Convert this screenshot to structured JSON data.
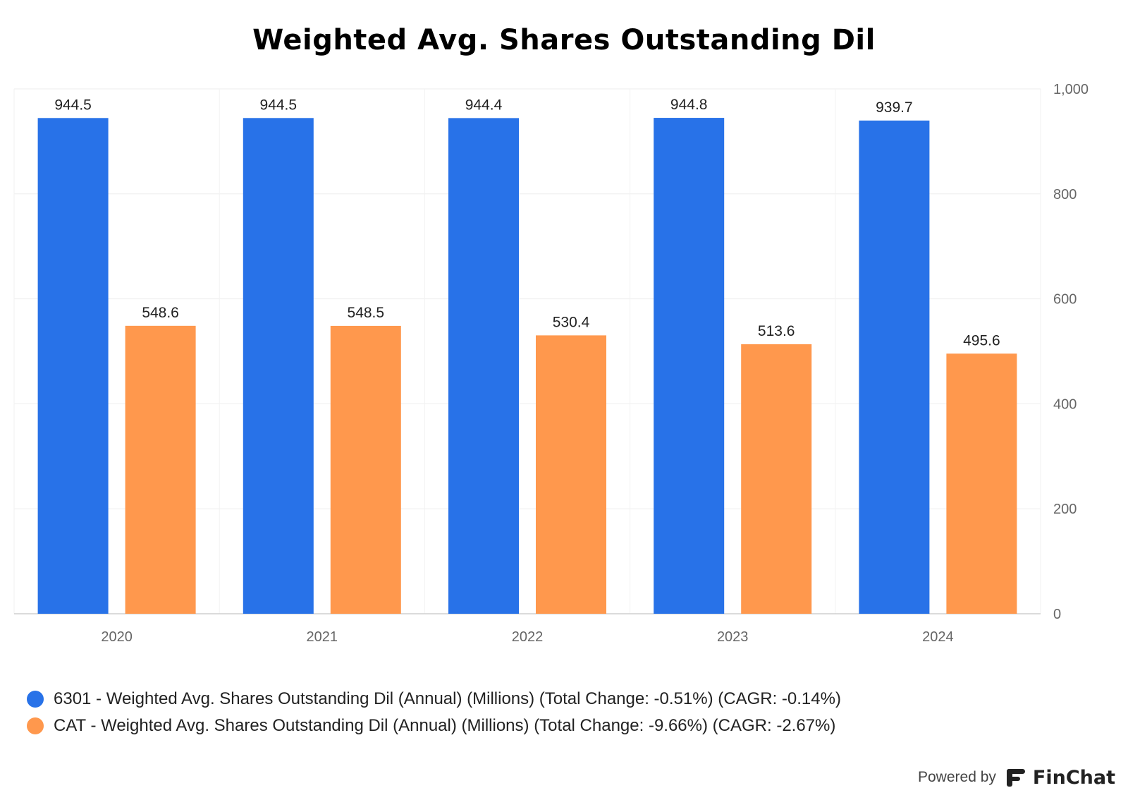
{
  "chart_data": {
    "type": "bar",
    "title": "Weighted Avg. Shares Outstanding Dil",
    "categories": [
      "2020",
      "2021",
      "2022",
      "2023",
      "2024"
    ],
    "series": [
      {
        "name": "6301 - Weighted Avg. Shares Outstanding Dil (Annual) (Millions) (Total Change: -0.51%) (CAGR: -0.14%)",
        "color": "#2872E8",
        "values": [
          944.5,
          944.5,
          944.4,
          944.8,
          939.7
        ],
        "labels": [
          "944.5",
          "944.5",
          "944.4",
          "944.8",
          "939.7"
        ]
      },
      {
        "name": "CAT - Weighted Avg. Shares Outstanding Dil (Annual) (Millions) (Total Change: -9.66%) (CAGR: -2.67%)",
        "color": "#FF984D",
        "values": [
          548.6,
          548.5,
          530.4,
          513.6,
          495.6
        ],
        "labels": [
          "548.6",
          "548.5",
          "530.4",
          "513.6",
          "495.6"
        ]
      }
    ],
    "ylim": [
      0,
      1000
    ],
    "yticks": [
      0,
      200,
      400,
      600,
      800,
      1000
    ],
    "ytick_labels": [
      "0",
      "200",
      "400",
      "600",
      "800",
      "1,000"
    ],
    "y_axis_side": "right",
    "grid": true,
    "legend_position": "bottom-left"
  },
  "footer": {
    "powered_by": "Powered by",
    "brand": "FinChat",
    "logo_icon": "finchat-logo-icon"
  }
}
